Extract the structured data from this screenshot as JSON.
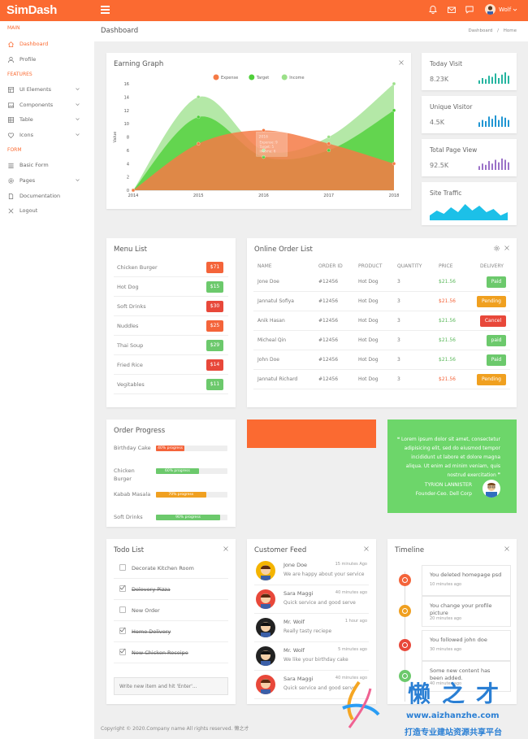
{
  "app": {
    "logo": "SimDash",
    "user_name": "Wolf"
  },
  "sidebar": {
    "sections": [
      "MAIN",
      "FEATURES",
      "FORM"
    ],
    "items": [
      {
        "label": "Dashboard",
        "icon": "home-icon"
      },
      {
        "label": "Profile",
        "icon": "user-icon"
      },
      {
        "label": "UI Elements",
        "icon": "layers-icon"
      },
      {
        "label": "Components",
        "icon": "image-icon"
      },
      {
        "label": "Table",
        "icon": "table-icon"
      },
      {
        "label": "Icons",
        "icon": "heart-icon"
      },
      {
        "label": "Basic Form",
        "icon": "list-icon"
      },
      {
        "label": "Pages",
        "icon": "gear-icon"
      },
      {
        "label": "Documentation",
        "icon": "file-icon"
      },
      {
        "label": "Logout",
        "icon": "close-icon"
      }
    ]
  },
  "header": {
    "title": "Dashboard",
    "breadcrumb": [
      "Dashboard",
      "/",
      "Home"
    ]
  },
  "earning": {
    "title": "Earning Graph"
  },
  "chart_data": {
    "type": "area",
    "title": "Earning Graph",
    "ylabel": "Value",
    "x": [
      "2014",
      "2015",
      "2016",
      "2017",
      "2018"
    ],
    "ylim": [
      0,
      16
    ],
    "yticks": [
      "0",
      "2",
      "4",
      "6",
      "8",
      "10",
      "12",
      "14",
      "16"
    ],
    "legend_position": "top",
    "series": [
      {
        "name": "Expense",
        "color": "#f57a45",
        "values": [
          0,
          7,
          9,
          7,
          4
        ]
      },
      {
        "name": "Target",
        "color": "#4fcf3a",
        "values": [
          0,
          11,
          5,
          6,
          12
        ]
      },
      {
        "name": "Income",
        "color": "#9be089",
        "values": [
          0,
          14,
          6,
          8,
          16
        ]
      }
    ],
    "tooltip": {
      "title": "2016",
      "lines": [
        "Expense: 9",
        "Target: 5",
        "Income: 6"
      ]
    }
  },
  "stats": [
    {
      "label": "Today Visit",
      "value": "8.23K",
      "color": "#26b5a0",
      "bars": [
        3,
        5,
        4,
        7,
        6,
        9,
        5,
        8,
        10,
        7
      ]
    },
    {
      "label": "Unique Visitor",
      "value": "4.5K",
      "color": "#2196d3",
      "bars": [
        4,
        6,
        5,
        9,
        7,
        10,
        6,
        9,
        8,
        6
      ]
    },
    {
      "label": "Total Page View",
      "value": "92.5K",
      "color": "#9b72c8",
      "bars": [
        3,
        5,
        4,
        7,
        5,
        8,
        6,
        9,
        8,
        6
      ]
    },
    {
      "label": "Site Traffic",
      "color": "#1cc0e8",
      "area": [
        3,
        6,
        4,
        8,
        5,
        10,
        6,
        9,
        5,
        7,
        3,
        5
      ]
    }
  ],
  "menu": {
    "title": "Menu List",
    "items": [
      {
        "name": "Chicken Burger",
        "price": "$71",
        "color": "#f4643a"
      },
      {
        "name": "Hot Dog",
        "price": "$15",
        "color": "#6cc96c"
      },
      {
        "name": "Soft Drinks",
        "price": "$30",
        "color": "#e8483a"
      },
      {
        "name": "Nuddles",
        "price": "$25",
        "color": "#f4643a"
      },
      {
        "name": "Thai Soup",
        "price": "$29",
        "color": "#6cc96c"
      },
      {
        "name": "Fried Rice",
        "price": "$14",
        "color": "#e8483a"
      },
      {
        "name": "Vegitables",
        "price": "$11",
        "color": "#6cc96c"
      }
    ]
  },
  "orders": {
    "title": "Online Order List",
    "columns": [
      "NAME",
      "ORDER ID",
      "PRODUCT",
      "QUANTITY",
      "PRICE",
      "DELIVERY"
    ],
    "rows": [
      {
        "name": "Jone Doe",
        "id": "#12456",
        "product": "Hot Dog",
        "qty": "3",
        "price": "$21.56",
        "price_color": "#5bb85b",
        "status": "Paid",
        "status_color": "#6cc96c"
      },
      {
        "name": "Jannatul Sofiya",
        "id": "#12456",
        "product": "Hot Dog",
        "qty": "3",
        "price": "$21.56",
        "price_color": "#f4643a",
        "status": "Pending",
        "status_color": "#f0a020"
      },
      {
        "name": "Anik Hasan",
        "id": "#12456",
        "product": "Hot Dog",
        "qty": "3",
        "price": "$21.56",
        "price_color": "#5bb85b",
        "status": "Cancel",
        "status_color": "#e8483a"
      },
      {
        "name": "Micheal Qin",
        "id": "#12456",
        "product": "Hot Dog",
        "qty": "3",
        "price": "$21.56",
        "price_color": "#5bb85b",
        "status": "paid",
        "status_color": "#6cc96c"
      },
      {
        "name": "John Doe",
        "id": "#12456",
        "product": "Hot Dog",
        "qty": "3",
        "price": "$21.56",
        "price_color": "#5bb85b",
        "status": "Paid",
        "status_color": "#6cc96c"
      },
      {
        "name": "Jannatul Richard",
        "id": "#12456",
        "product": "Hot Dog",
        "qty": "3",
        "price": "$21.56",
        "price_color": "#f4643a",
        "status": "Pending",
        "status_color": "#f0a020"
      }
    ]
  },
  "progress": {
    "title": "Order Progress",
    "items": [
      {
        "label": "Birthday Cake",
        "text": "40% progress",
        "pct": 40,
        "color": "#f4643a"
      },
      {
        "label": "Chicken Burger",
        "text": "60% progress",
        "pct": 60,
        "color": "#6cc96c"
      },
      {
        "label": "Kabab Masala",
        "text": "70% progress",
        "pct": 70,
        "color": "#f0a020"
      },
      {
        "label": "Soft Drinks",
        "text": "90% progress",
        "pct": 90,
        "color": "#6cc96c"
      }
    ]
  },
  "quote": {
    "text": "Lorem ipsum dolor sit amet, consectetur adipisicing elit, sed do eiusmod tempor incididunt ut labore et dolore magna aliqua. Ut enim ad minim veniam, quis nostrud exercitation",
    "author": "TYRION LANNISTER",
    "role": "Founder-Ceo. Dell Corp"
  },
  "todo": {
    "title": "Todo List",
    "items": [
      {
        "text": "Decorate Kitchen Room",
        "done": false
      },
      {
        "text": "Delevery Pizza",
        "done": true
      },
      {
        "text": "New Order",
        "done": false
      },
      {
        "text": "Home Delivery",
        "done": true
      },
      {
        "text": "New Chicken Receipe",
        "done": true
      }
    ],
    "placeholder": "Write new item and hit 'Enter'..."
  },
  "feed": {
    "title": "Customer Feed",
    "items": [
      {
        "name": "Jone Doe",
        "time": "15 minutes Ago",
        "msg": "We are happy about your service",
        "avatar": "#f4b400"
      },
      {
        "name": "Sara Maggi",
        "time": "40 minutes ago",
        "msg": "Quick service and good serve",
        "avatar": "#e8483a"
      },
      {
        "name": "Mr. Wolf",
        "time": "1 hour ago",
        "msg": "Really tasty reciepe",
        "avatar": "#222"
      },
      {
        "name": "Mr. Wolf",
        "time": "5 minutes ago",
        "msg": "We like your birthday cake",
        "avatar": "#222"
      },
      {
        "name": "Sara Maggi",
        "time": "40 minutes ago",
        "msg": "Quick service and good serve",
        "avatar": "#e8483a"
      }
    ]
  },
  "timeline": {
    "title": "Timeline",
    "items": [
      {
        "text": "You deleted homepage psd",
        "time": "10 minutes ago",
        "color": "#f4643a"
      },
      {
        "text": "You change your profile picture",
        "time": "20 minutes ago",
        "color": "#f0a020"
      },
      {
        "text": "You followed john doe",
        "time": "30 minutes ago",
        "color": "#e8483a"
      },
      {
        "text": "Some new content has been added.",
        "time": "40 minutes ago",
        "color": "#6cc96c"
      }
    ]
  },
  "footer": "Copyright © 2020.Company name All rights reserved. 懒之才",
  "watermark": {
    "brand": "懒之才",
    "url": "www.aizhanzhe.com",
    "slogan": "打造专业建站资源共享平台"
  }
}
